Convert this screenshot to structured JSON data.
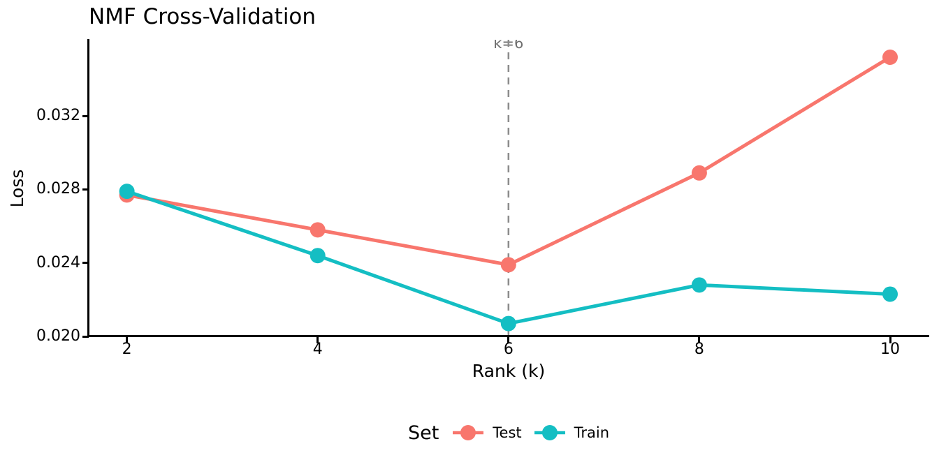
{
  "chart_data": {
    "type": "line",
    "title": "NMF Cross-Validation",
    "xlabel": "Rank (k)",
    "ylabel": "Loss",
    "x": [
      2,
      4,
      6,
      8,
      10
    ],
    "series": [
      {
        "name": "Test",
        "color": "#F8766D",
        "values": [
          0.0277,
          0.0258,
          0.0239,
          0.0289,
          0.0352
        ]
      },
      {
        "name": "Train",
        "color": "#14BEC3",
        "values": [
          0.0279,
          0.0244,
          0.0207,
          0.0228,
          0.0223
        ]
      }
    ],
    "xticks": {
      "values": [
        2,
        4,
        6,
        8,
        10
      ],
      "labels": [
        "2",
        "4",
        "6",
        "8",
        "10"
      ]
    },
    "yticks": {
      "values": [
        0.02,
        0.024,
        0.028,
        0.032
      ],
      "labels": [
        "0.020",
        "0.024",
        "0.028",
        "0.032"
      ]
    },
    "xlim": [
      1.6,
      10.41
    ],
    "ylim": [
      0.02,
      0.03615
    ],
    "grid": false,
    "legend": {
      "title": "Set",
      "position": "bottom",
      "entries": [
        {
          "label": "Test",
          "color": "#F8766D"
        },
        {
          "label": "Train",
          "color": "#14BEC3"
        }
      ]
    },
    "annotation": {
      "label": "k=6",
      "x": 6,
      "line_style": "dashed",
      "line_color": "#8C8C8C",
      "text_color": "#6E6E6E"
    },
    "style": {
      "axis_color": "#000000",
      "background": "#ffffff",
      "marker_radius": 11,
      "line_width": 5
    }
  }
}
